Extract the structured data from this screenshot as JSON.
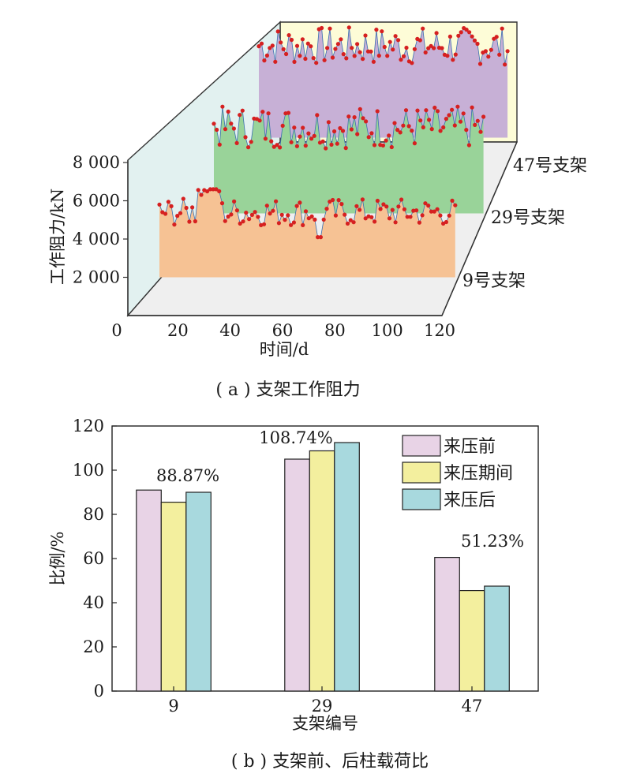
{
  "chart_data": [
    {
      "type": "area",
      "caption": "( a ) 支架工作阻力",
      "xlabel": "时间/d",
      "ylabel": "工作阻力/kN",
      "xlim": [
        0,
        120
      ],
      "ylim": [
        0,
        9000
      ],
      "x_ticks": [
        "0",
        "20",
        "40",
        "60",
        "80",
        "100",
        "120"
      ],
      "y_ticks": [
        "2 000",
        "4 000",
        "6 000",
        "8 000"
      ],
      "depth_labels": [
        "47号支架",
        "29号支架",
        "9号支架"
      ],
      "colors": {
        "9": "#f6c294",
        "29": "#99d399",
        "47": "#c7b0d6",
        "marker": "#d62020",
        "line": "#3b6fb0"
      },
      "series": [
        {
          "name": "9号支架",
          "min": 4700,
          "max": 6000,
          "base": 5400,
          "spike_day": 11,
          "spike_val": 6800
        },
        {
          "name": "29号支架",
          "min": 5300,
          "max": 7300,
          "base": 6500
        },
        {
          "name": "47号支架",
          "min": 5800,
          "max": 7600,
          "base": 6800
        }
      ]
    },
    {
      "type": "bar",
      "caption": "( b ) 支架前、后柱载荷比",
      "xlabel": "支架编号",
      "ylabel": "比例/%",
      "categories": [
        "9",
        "29",
        "47"
      ],
      "ylim": [
        0,
        120
      ],
      "y_ticks": [
        "0",
        "20",
        "40",
        "60",
        "80",
        "100",
        "120"
      ],
      "legend_position": "top-right",
      "series": [
        {
          "name": "来压前",
          "color": "#e8d3e6",
          "values": [
            91,
            105,
            60.5
          ]
        },
        {
          "name": "来压期间",
          "color": "#f3ef9e",
          "values": [
            85.5,
            108.74,
            45.5
          ]
        },
        {
          "name": "来压后",
          "color": "#a8d9de",
          "values": [
            90,
            112.5,
            47.5
          ]
        }
      ],
      "annotations": [
        "88.87%",
        "108.74%",
        "51.23%"
      ]
    }
  ]
}
